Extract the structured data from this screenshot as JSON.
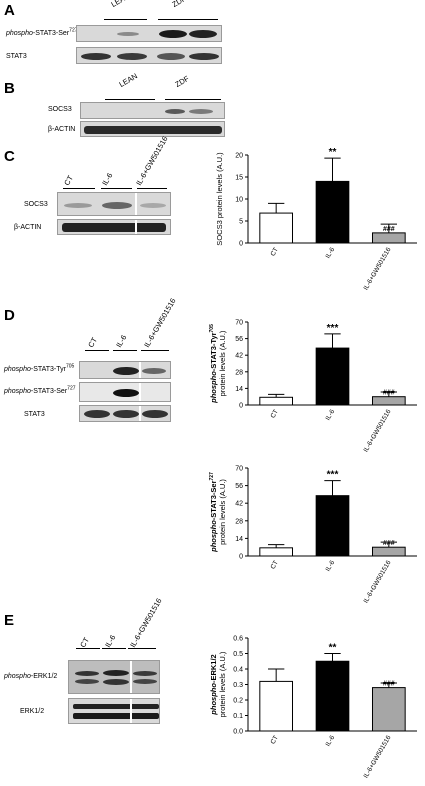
{
  "panels": {
    "A": {
      "letter": "A",
      "groups": [
        "LEAN",
        "ZDF"
      ],
      "rows": [
        {
          "prefix": "phospho",
          "main": "-STAT3-Ser",
          "sup": "727"
        },
        {
          "prefix": "",
          "main": "STAT3",
          "sup": ""
        }
      ]
    },
    "B": {
      "letter": "B",
      "groups": [
        "LEAN",
        "ZDF"
      ],
      "rows": [
        {
          "prefix": "",
          "main": "SOCS3",
          "sup": ""
        },
        {
          "prefix": "",
          "main": "β-ACTIN",
          "sup": ""
        }
      ]
    },
    "C": {
      "letter": "C",
      "lanes": [
        "CT",
        "IL-6",
        "IL-6+GW501516"
      ],
      "rows": [
        {
          "prefix": "",
          "main": "SOCS3",
          "sup": ""
        },
        {
          "prefix": "",
          "main": "β-ACTIN",
          "sup": ""
        }
      ]
    },
    "D": {
      "letter": "D",
      "lanes": [
        "CT",
        "IL-6",
        "IL-6+GW501516"
      ],
      "rows": [
        {
          "prefix": "phospho",
          "main": "-STAT3-Tyr",
          "sup": "705"
        },
        {
          "prefix": "phospho",
          "main": "-STAT3-Ser",
          "sup": "727"
        },
        {
          "prefix": "",
          "main": "STAT3",
          "sup": ""
        }
      ]
    },
    "E": {
      "letter": "E",
      "lanes": [
        "CT",
        "IL-6",
        "IL-6+GW501516"
      ],
      "rows": [
        {
          "prefix": "phospho",
          "main": "-ERK1/2",
          "sup": ""
        },
        {
          "prefix": "",
          "main": "ERK1/2",
          "sup": ""
        }
      ]
    }
  },
  "chart_data": [
    {
      "id": "socs3",
      "type": "bar",
      "title": "",
      "ylabel_prefix": "",
      "ylabel_main": "SOCS3 protein levels (A.U.)",
      "ylabel_sup": "",
      "ylabel_line2": "",
      "categories": [
        "CT",
        "IL-6",
        "IL-6+GW501516"
      ],
      "values": [
        6.8,
        14.0,
        2.3
      ],
      "errors": [
        2.2,
        5.3,
        2.0
      ],
      "significance": [
        "",
        "**",
        "###"
      ],
      "bar_colors": [
        "#ffffff",
        "#000000",
        "#a6a6a6"
      ],
      "ylim": [
        0,
        20
      ],
      "yticks": [
        "0",
        "5",
        "10",
        "15",
        "20"
      ]
    },
    {
      "id": "pstat3_tyr",
      "type": "bar",
      "title": "",
      "ylabel_prefix": "phospho",
      "ylabel_main": "-STAT3-Tyr",
      "ylabel_sup": "705",
      "ylabel_line2": "protein levels (A.U.)",
      "categories": [
        "CT",
        "IL-6",
        "IL-6+GW501516"
      ],
      "values": [
        6.5,
        48.0,
        7.0
      ],
      "errors": [
        2.5,
        12.0,
        4.0
      ],
      "significance": [
        "",
        "***",
        "###"
      ],
      "bar_colors": [
        "#ffffff",
        "#000000",
        "#a6a6a6"
      ],
      "ylim": [
        0,
        70
      ],
      "yticks": [
        "0",
        "14",
        "28",
        "42",
        "56",
        "70"
      ]
    },
    {
      "id": "pstat3_ser",
      "type": "bar",
      "title": "",
      "ylabel_prefix": "phospho",
      "ylabel_main": "-STAT3-Ser",
      "ylabel_sup": "727",
      "ylabel_line2": "protein levels (A.U.)",
      "categories": [
        "CT",
        "IL-6",
        "IL-6+GW501516"
      ],
      "values": [
        6.5,
        48.0,
        7.0
      ],
      "errors": [
        2.5,
        12.0,
        4.0
      ],
      "significance": [
        "",
        "***",
        "###"
      ],
      "bar_colors": [
        "#ffffff",
        "#000000",
        "#a6a6a6"
      ],
      "ylim": [
        0,
        70
      ],
      "yticks": [
        "0",
        "14",
        "28",
        "42",
        "56",
        "70"
      ]
    },
    {
      "id": "perk",
      "type": "bar",
      "title": "",
      "ylabel_prefix": "phospho",
      "ylabel_main": "-ERK1/2",
      "ylabel_sup": "",
      "ylabel_line2": "protein levels (A.U.)",
      "categories": [
        "CT",
        "IL-6",
        "IL-6+GW501516"
      ],
      "values": [
        0.32,
        0.45,
        0.28
      ],
      "errors": [
        0.08,
        0.05,
        0.03
      ],
      "significance": [
        "",
        "**",
        "###"
      ],
      "bar_colors": [
        "#ffffff",
        "#000000",
        "#a6a6a6"
      ],
      "ylim": [
        0,
        0.6
      ],
      "yticks": [
        "0.0",
        "0.1",
        "0.2",
        "0.3",
        "0.4",
        "0.5",
        "0.6"
      ]
    }
  ]
}
